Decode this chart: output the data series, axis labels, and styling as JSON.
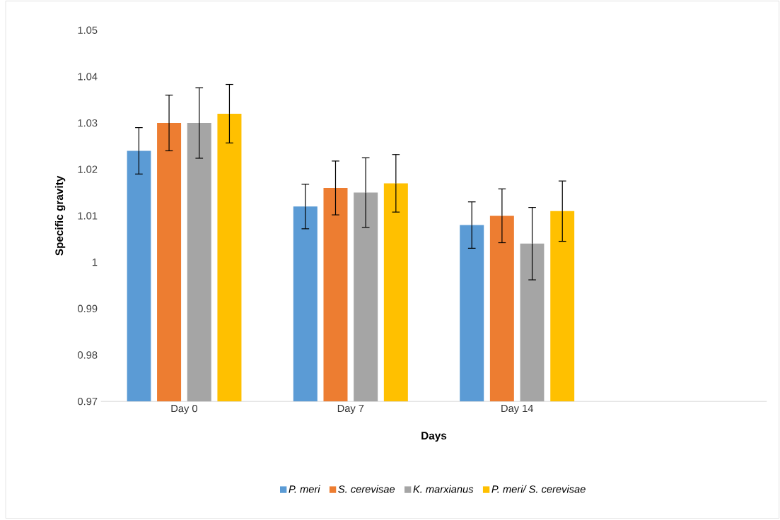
{
  "chart_data": {
    "type": "bar",
    "xlabel": "Days",
    "ylabel": "Specific gravity",
    "categories": [
      "Day 0",
      "Day 7",
      "Day 14",
      null
    ],
    "series": [
      {
        "name": "P. meri",
        "color": "#5b9bd5",
        "values": [
          1.024,
          1.012,
          1.008,
          null
        ],
        "errors": [
          0.005,
          0.0048,
          0.005,
          null
        ]
      },
      {
        "name": "S. cerevisae",
        "color": "#ed7d31",
        "values": [
          1.03,
          1.016,
          1.01,
          null
        ],
        "errors": [
          0.006,
          0.0058,
          0.0058,
          null
        ]
      },
      {
        "name": "K. marxianus",
        "color": "#a5a5a5",
        "values": [
          1.03,
          1.015,
          1.004,
          null
        ],
        "errors": [
          0.0076,
          0.0075,
          0.0078,
          null
        ]
      },
      {
        "name": "P. meri/ S. cerevisae",
        "color": "#ffc000",
        "values": [
          1.032,
          1.017,
          1.011,
          null
        ],
        "errors": [
          0.0063,
          0.0062,
          0.0065,
          null
        ]
      }
    ],
    "ylim": [
      0.97,
      1.05
    ],
    "yticks": [
      0.97,
      0.98,
      0.99,
      1,
      1.01,
      1.02,
      1.03,
      1.04,
      1.05
    ],
    "legend": "bottom"
  }
}
